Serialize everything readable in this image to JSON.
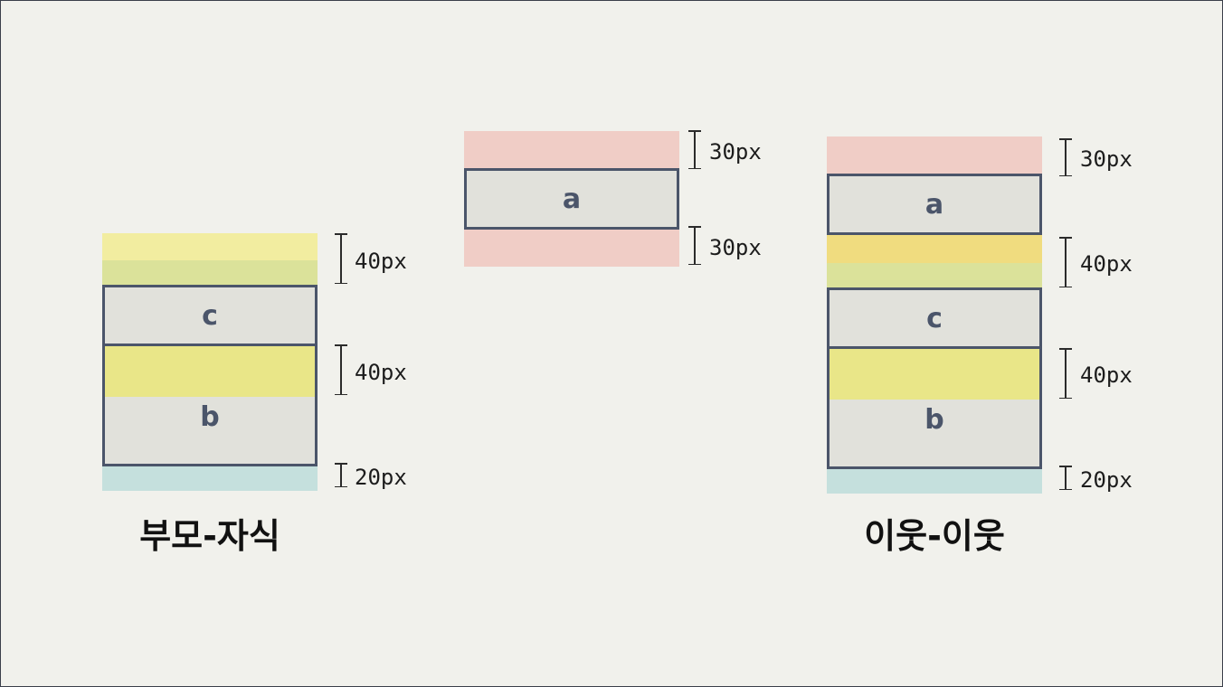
{
  "diagrams": {
    "parent_child": {
      "caption": "부모-자식",
      "box_c": "c",
      "box_b": "b",
      "dims": [
        "40px",
        "40px",
        "20px"
      ]
    },
    "single": {
      "box_a": "a",
      "dims": [
        "30px",
        "30px"
      ]
    },
    "siblings": {
      "caption": "이웃-이웃",
      "box_a": "a",
      "box_c": "c",
      "box_b": "b",
      "dims": [
        "30px",
        "40px",
        "40px",
        "20px"
      ]
    }
  },
  "colors": {
    "margin_red": "#f0cdc6",
    "margin_yellow": "#f2eda0",
    "margin_green": "#c5e0dd",
    "box_border": "#4b556a",
    "box_fill": "#e0e0da",
    "background": "#f1f1ec"
  }
}
